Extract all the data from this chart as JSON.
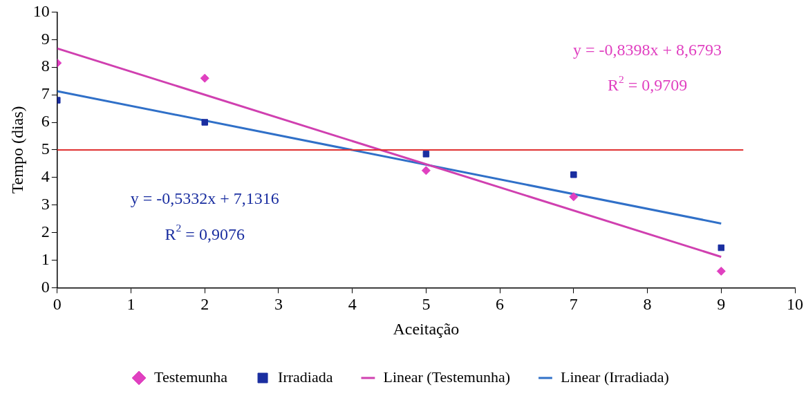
{
  "chart_data": {
    "type": "scatter",
    "xlabel": "Aceitação",
    "ylabel": "Tempo (dias)",
    "xlim": [
      0,
      10
    ],
    "ylim": [
      0,
      10
    ],
    "xticks": [
      0,
      1,
      2,
      3,
      4,
      5,
      6,
      7,
      8,
      9,
      10
    ],
    "yticks": [
      0,
      1,
      2,
      3,
      4,
      5,
      6,
      7,
      8,
      9,
      10
    ],
    "grid": false,
    "legend": "bottom",
    "series": [
      {
        "name": "Testemunha",
        "marker": "diamond",
        "color": "#e040c0",
        "x": [
          0,
          2,
          5,
          7,
          9
        ],
        "values": [
          8.15,
          7.6,
          4.25,
          3.3,
          0.6
        ]
      },
      {
        "name": "Irradiada",
        "marker": "square",
        "color": "#1a2ea0",
        "x": [
          0,
          2,
          5,
          7,
          9
        ],
        "values": [
          6.8,
          6.0,
          4.85,
          4.1,
          1.45
        ]
      },
      {
        "name": "Linear (Testemunha)",
        "type": "line",
        "marker": "none",
        "color": "#d040b0",
        "x": [
          0,
          9
        ],
        "values": [
          8.68,
          1.12
        ]
      },
      {
        "name": "Linear (Irradiada)",
        "type": "line",
        "marker": "none",
        "color": "#3070c8",
        "x": [
          0,
          9
        ],
        "values": [
          7.13,
          2.33
        ]
      }
    ],
    "ref_lines": [
      {
        "axis": "y",
        "value": 5,
        "color": "#e03030"
      }
    ],
    "annotations": [
      "y = -0,8398x + 8,6793",
      "R$^{2}$ = 0,9709",
      "y = -0,5332x + 7,1316",
      "R$^{2}$ = 0,9076"
    ]
  }
}
